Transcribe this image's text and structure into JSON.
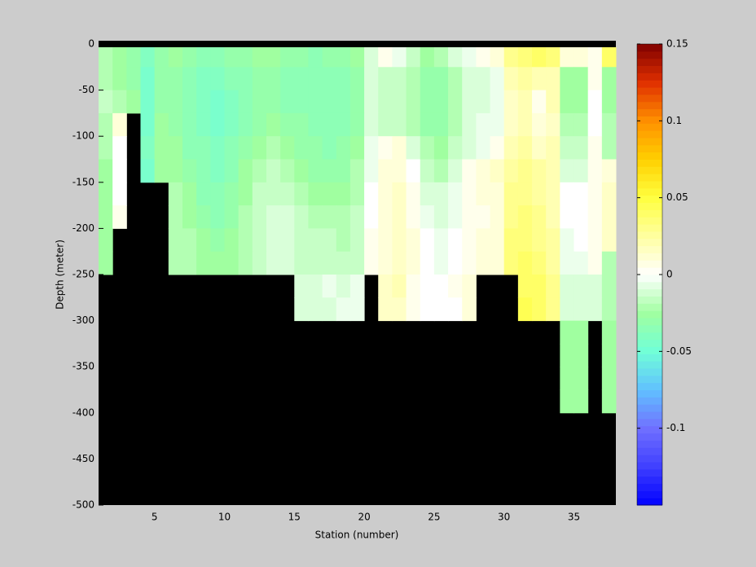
{
  "chart_data": {
    "type": "heatmap",
    "xlabel": "Station (number)",
    "ylabel": "Depth (meter)",
    "xlim": [
      1,
      38
    ],
    "ylim": [
      -500,
      0
    ],
    "xticks": [
      5,
      10,
      15,
      20,
      25,
      30,
      35
    ],
    "yticks": [
      0,
      -50,
      -100,
      -150,
      -200,
      -250,
      -300,
      -350,
      -400,
      -450,
      -500
    ],
    "clim": [
      -0.15,
      0.15
    ],
    "cticks": [
      -0.1,
      -0.05,
      0,
      0.05,
      0.1,
      0.15
    ],
    "mask_color": "#000000",
    "colormap": [
      "#0000ff",
      "#3f3fff",
      "#7070ff",
      "#60c0ff",
      "#70ffd8",
      "#a0ffa0",
      "#ffffff",
      "#ffffa0",
      "#ffff40",
      "#ffd000",
      "#ff9000",
      "#e03000",
      "#800000"
    ],
    "z": [
      [
        -0.02,
        -0.025,
        -0.03,
        -0.04,
        -0.03,
        -0.025,
        -0.03,
        -0.035,
        -0.035,
        -0.03,
        -0.03,
        -0.025,
        -0.025,
        -0.03,
        -0.03,
        -0.035,
        -0.03,
        -0.03,
        -0.025,
        -0.01,
        0.005,
        -0.005,
        -0.015,
        -0.025,
        -0.02,
        -0.01,
        -0.005,
        0.005,
        0.01,
        0.03,
        0.035,
        0.04,
        0.035,
        0.01,
        0.01,
        0.005,
        0.04
      ],
      [
        -0.02,
        -0.025,
        -0.03,
        -0.045,
        -0.03,
        -0.03,
        -0.035,
        -0.04,
        -0.04,
        -0.035,
        -0.035,
        -0.03,
        -0.03,
        -0.035,
        -0.035,
        -0.035,
        -0.035,
        -0.035,
        -0.03,
        -0.01,
        -0.015,
        -0.015,
        -0.02,
        -0.03,
        -0.03,
        -0.02,
        -0.01,
        -0.01,
        -0.005,
        0.02,
        0.025,
        0.02,
        0.02,
        -0.025,
        -0.025,
        0.005,
        -0.025
      ],
      [
        -0.015,
        -0.02,
        -0.025,
        -0.045,
        -0.03,
        -0.03,
        -0.035,
        -0.04,
        -0.045,
        -0.04,
        -0.035,
        -0.03,
        -0.03,
        -0.035,
        -0.035,
        -0.035,
        -0.035,
        -0.035,
        -0.03,
        -0.01,
        -0.015,
        -0.015,
        -0.02,
        -0.03,
        -0.03,
        -0.02,
        -0.01,
        -0.01,
        -0.005,
        0.015,
        0.02,
        0.005,
        0.02,
        -0.025,
        -0.025,
        0,
        -0.025
      ],
      [
        -0.02,
        0.01,
        null,
        -0.045,
        -0.025,
        -0.03,
        -0.035,
        -0.04,
        -0.045,
        -0.04,
        -0.035,
        -0.03,
        -0.025,
        -0.03,
        -0.03,
        -0.035,
        -0.035,
        -0.035,
        -0.03,
        -0.01,
        -0.015,
        -0.015,
        -0.02,
        -0.03,
        -0.03,
        -0.02,
        -0.01,
        -0.005,
        -0.005,
        0.015,
        0.02,
        0.01,
        0.015,
        -0.02,
        -0.02,
        0,
        -0.02
      ],
      [
        -0.02,
        0,
        null,
        -0.04,
        -0.025,
        -0.025,
        -0.035,
        -0.035,
        -0.04,
        -0.035,
        -0.03,
        -0.025,
        -0.02,
        -0.025,
        -0.03,
        -0.03,
        -0.035,
        -0.03,
        -0.025,
        -0.005,
        0.005,
        0.01,
        -0.01,
        -0.02,
        -0.025,
        -0.015,
        -0.01,
        -0.005,
        0.005,
        0.02,
        0.025,
        0.015,
        0.02,
        -0.015,
        -0.015,
        0.005,
        -0.02
      ],
      [
        -0.025,
        0,
        null,
        -0.045,
        -0.025,
        -0.025,
        -0.03,
        -0.035,
        -0.04,
        -0.035,
        -0.025,
        -0.02,
        -0.015,
        -0.02,
        -0.025,
        -0.03,
        -0.03,
        -0.03,
        -0.02,
        -0.005,
        0.01,
        0.01,
        0,
        -0.015,
        -0.02,
        -0.01,
        0.005,
        0.01,
        0.015,
        0.025,
        0.03,
        0.025,
        0.02,
        -0.01,
        -0.01,
        0.005,
        0.01
      ],
      [
        -0.025,
        0,
        null,
        null,
        null,
        -0.02,
        -0.025,
        -0.035,
        -0.035,
        -0.03,
        -0.025,
        -0.015,
        -0.015,
        -0.015,
        -0.02,
        -0.025,
        -0.025,
        -0.025,
        -0.02,
        0,
        0.01,
        0.015,
        0.005,
        -0.01,
        -0.01,
        -0.005,
        0.005,
        0.01,
        0.01,
        0.03,
        0.03,
        0.025,
        0.02,
        0,
        0,
        0.005,
        0.015
      ],
      [
        -0.025,
        0.005,
        null,
        null,
        null,
        -0.02,
        -0.025,
        -0.03,
        -0.035,
        -0.03,
        -0.02,
        -0.015,
        -0.01,
        -0.01,
        -0.015,
        -0.02,
        -0.02,
        -0.02,
        -0.015,
        0,
        0.01,
        0.015,
        0.005,
        -0.005,
        -0.01,
        -0.005,
        0.005,
        0.005,
        0.01,
        0.03,
        0.035,
        0.03,
        0.02,
        0,
        0,
        0.005,
        0.015
      ],
      [
        -0.025,
        null,
        null,
        null,
        null,
        -0.02,
        -0.02,
        -0.025,
        -0.03,
        -0.025,
        -0.02,
        -0.015,
        -0.01,
        -0.01,
        -0.015,
        -0.015,
        -0.015,
        -0.02,
        -0.015,
        0.005,
        0.01,
        0.015,
        0.01,
        0,
        -0.005,
        0,
        0.005,
        0.01,
        0.01,
        0.035,
        0.035,
        0.03,
        0.025,
        -0.005,
        0,
        0.005,
        0.015
      ],
      [
        -0.025,
        null,
        null,
        null,
        null,
        -0.02,
        -0.02,
        -0.025,
        -0.025,
        -0.025,
        -0.02,
        -0.015,
        -0.01,
        -0.01,
        -0.015,
        -0.015,
        -0.015,
        -0.015,
        -0.015,
        0.005,
        0.01,
        0.015,
        0.01,
        0,
        -0.005,
        0,
        0.005,
        0.01,
        0.01,
        0.035,
        0.04,
        0.035,
        0.025,
        -0.005,
        -0.005,
        0.005,
        -0.02
      ],
      [
        null,
        null,
        null,
        null,
        null,
        null,
        null,
        null,
        null,
        null,
        null,
        null,
        null,
        null,
        -0.01,
        -0.01,
        -0.005,
        -0.01,
        -0.005,
        null,
        0.015,
        0.02,
        0.005,
        0,
        0,
        0.005,
        0.01,
        null,
        null,
        null,
        0.04,
        0.04,
        0.03,
        -0.01,
        -0.01,
        -0.01,
        -0.02
      ],
      [
        null,
        null,
        null,
        null,
        null,
        null,
        null,
        null,
        null,
        null,
        null,
        null,
        null,
        null,
        -0.01,
        -0.01,
        -0.01,
        -0.005,
        -0.005,
        null,
        0.015,
        0.015,
        0.005,
        0,
        0,
        0,
        0.01,
        null,
        null,
        null,
        0.045,
        0.04,
        0.03,
        -0.01,
        -0.01,
        -0.01,
        -0.02
      ],
      [
        null,
        null,
        null,
        null,
        null,
        null,
        null,
        null,
        null,
        null,
        null,
        null,
        null,
        null,
        null,
        null,
        null,
        null,
        null,
        null,
        null,
        null,
        null,
        null,
        null,
        null,
        null,
        null,
        null,
        null,
        null,
        null,
        null,
        -0.025,
        -0.025,
        null,
        -0.025
      ],
      [
        null,
        null,
        null,
        null,
        null,
        null,
        null,
        null,
        null,
        null,
        null,
        null,
        null,
        null,
        null,
        null,
        null,
        null,
        null,
        null,
        null,
        null,
        null,
        null,
        null,
        null,
        null,
        null,
        null,
        null,
        null,
        null,
        null,
        -0.025,
        -0.025,
        null,
        -0.025
      ],
      [
        null,
        null,
        null,
        null,
        null,
        null,
        null,
        null,
        null,
        null,
        null,
        null,
        null,
        null,
        null,
        null,
        null,
        null,
        null,
        null,
        null,
        null,
        null,
        null,
        null,
        null,
        null,
        null,
        null,
        null,
        null,
        null,
        null,
        -0.025,
        -0.025,
        null,
        -0.025
      ],
      [
        null,
        null,
        null,
        null,
        null,
        null,
        null,
        null,
        null,
        null,
        null,
        null,
        null,
        null,
        null,
        null,
        null,
        null,
        null,
        null,
        null,
        null,
        null,
        null,
        null,
        null,
        null,
        null,
        null,
        null,
        null,
        null,
        null,
        -0.025,
        -0.025,
        null,
        -0.025
      ],
      [
        null,
        null,
        null,
        null,
        null,
        null,
        null,
        null,
        null,
        null,
        null,
        null,
        null,
        null,
        null,
        null,
        null,
        null,
        null,
        null,
        null,
        null,
        null,
        null,
        null,
        null,
        null,
        null,
        null,
        null,
        null,
        null,
        null,
        null,
        null,
        null,
        null
      ],
      [
        null,
        null,
        null,
        null,
        null,
        null,
        null,
        null,
        null,
        null,
        null,
        null,
        null,
        null,
        null,
        null,
        null,
        null,
        null,
        null,
        null,
        null,
        null,
        null,
        null,
        null,
        null,
        null,
        null,
        null,
        null,
        null,
        null,
        null,
        null,
        null,
        null
      ],
      [
        null,
        null,
        null,
        null,
        null,
        null,
        null,
        null,
        null,
        null,
        null,
        null,
        null,
        null,
        null,
        null,
        null,
        null,
        null,
        null,
        null,
        null,
        null,
        null,
        null,
        null,
        null,
        null,
        null,
        null,
        null,
        null,
        null,
        null,
        null,
        null,
        null
      ],
      [
        null,
        null,
        null,
        null,
        null,
        null,
        null,
        null,
        null,
        null,
        null,
        null,
        null,
        null,
        null,
        null,
        null,
        null,
        null,
        null,
        null,
        null,
        null,
        null,
        null,
        null,
        null,
        null,
        null,
        null,
        null,
        null,
        null,
        null,
        null,
        null,
        null
      ]
    ]
  }
}
